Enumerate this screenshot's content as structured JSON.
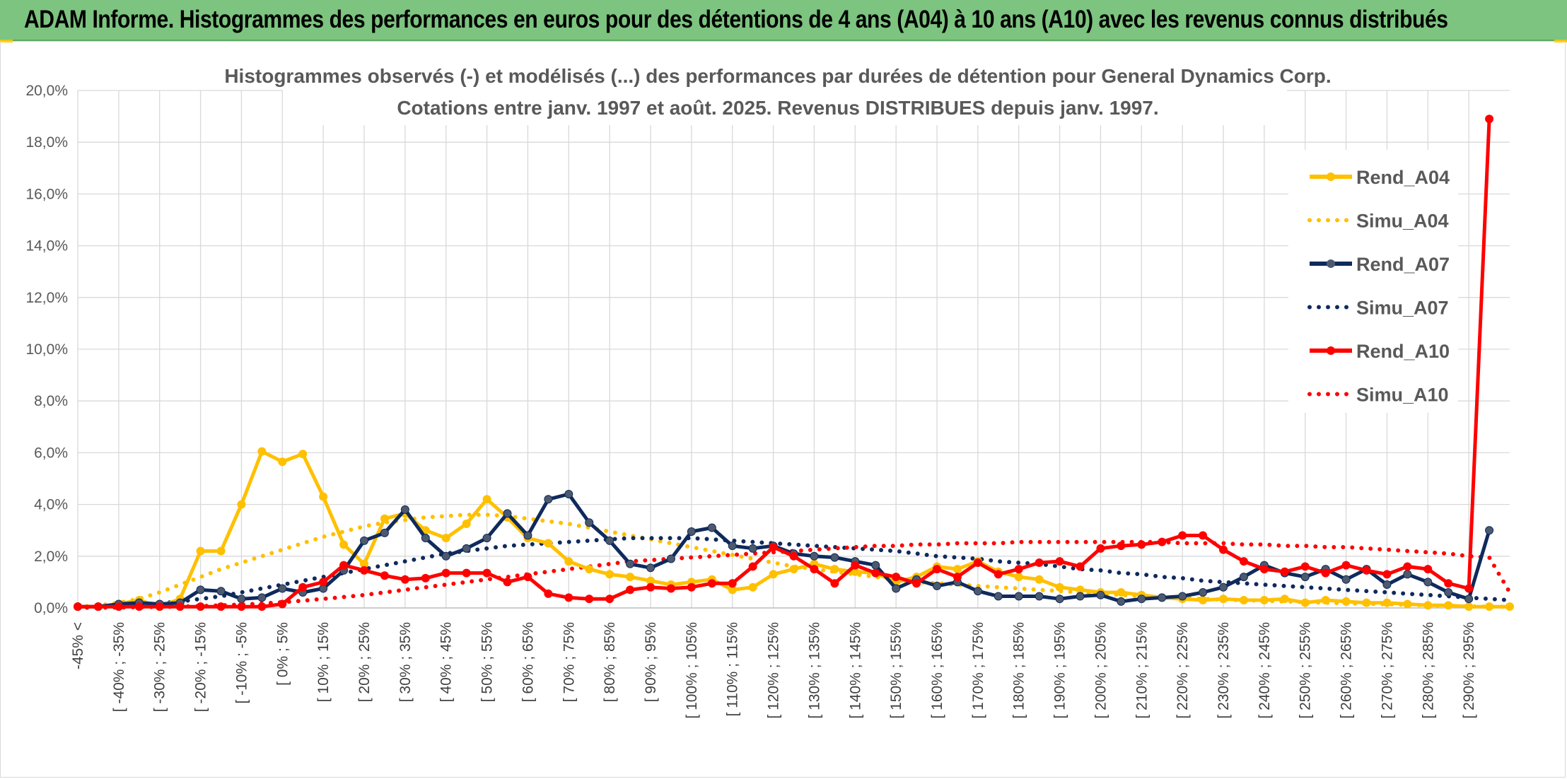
{
  "header": {
    "title": "ADAM Informe. Histogrammes des performances en euros pour des détentions de 4 ans (A04) à 10 ans (A10) avec les revenus connus distribués"
  },
  "colors": {
    "banner": "#7cc47f",
    "A04": "#ffc000",
    "A07": "#0f2a5c",
    "A07_marker": "#4d5a6e",
    "A10": "#ff0000"
  },
  "chart_data": {
    "type": "line",
    "title": "Histogrammes observés (-) et modélisés (...) des performances par durées de détention pour General Dynamics Corp.",
    "subtitle": "Cotations entre janv. 1997 et août. 2025. Revenus DISTRIBUES depuis janv. 1997.",
    "xlabel": "",
    "ylabel": "",
    "ylim": [
      0,
      20
    ],
    "y_ticks": [
      "0,0%",
      "2,0%",
      "4,0%",
      "6,0%",
      "8,0%",
      "10,0%",
      "12,0%",
      "14,0%",
      "16,0%",
      "18,0%",
      "20,0%"
    ],
    "grid": true,
    "legend_position": "right",
    "x_ticks": [
      "-45% <",
      "[ -40% ; -35%",
      "[ -30% ; -25%",
      "[ -20% ; -15%",
      "[ -10% ; -5%",
      "[ 0% ; 5%",
      "[ 10% ; 15%",
      "[ 20% ; 25%",
      "[ 30% ; 35%",
      "[ 40% ; 45%",
      "[ 50% ; 55%",
      "[ 60% ; 65%",
      "[ 70% ; 75%",
      "[ 80% ; 85%",
      "[ 90% ; 95%",
      "[ 100% ; 105%",
      "[ 110% ; 115%",
      "[ 120% ; 125%",
      "[ 130% ; 135%",
      "[ 140% ; 145%",
      "[ 150% ; 155%",
      "[ 160% ; 165%",
      "[ 170% ; 175%",
      "[ 180% ; 185%",
      "[ 190% ; 195%",
      "[ 200% ; 205%",
      "[ 210% ; 215%",
      "[ 220% ; 225%",
      "[ 230% ; 235%",
      "[ 240% ; 245%",
      "[ 250% ; 255%",
      "[ 260% ; 265%",
      "[ 270% ; 275%",
      "[ 280% ; 285%",
      "[ 290% ; 295%"
    ],
    "series": [
      {
        "name": "Rend_A04",
        "style": "solid",
        "color": "#ffc000",
        "values": [
          0.05,
          0.05,
          0.15,
          0.3,
          0.05,
          0.35,
          2.2,
          2.2,
          4.0,
          6.05,
          5.65,
          5.95,
          4.3,
          2.45,
          1.7,
          3.45,
          3.65,
          3.0,
          2.7,
          3.25,
          4.2,
          3.5,
          2.7,
          2.5,
          1.8,
          1.5,
          1.3,
          1.2,
          1.05,
          0.9,
          1.0,
          1.1,
          0.7,
          0.8,
          1.3,
          1.5,
          1.7,
          1.5,
          1.4,
          1.35,
          1.0,
          1.2,
          1.6,
          1.5,
          1.8,
          1.4,
          1.2,
          1.1,
          0.8,
          0.7,
          0.6,
          0.6,
          0.5,
          0.4,
          0.35,
          0.3,
          0.35,
          0.3,
          0.3,
          0.35,
          0.2,
          0.3,
          0.25,
          0.2,
          0.2,
          0.15,
          0.1,
          0.1,
          0.05,
          0.05,
          0.05
        ]
      },
      {
        "name": "Simu_A04",
        "style": "dotted",
        "color": "#ffc000",
        "values": [
          0.05,
          0.1,
          0.2,
          0.35,
          0.6,
          0.9,
          1.2,
          1.5,
          1.75,
          2.0,
          2.25,
          2.5,
          2.75,
          2.95,
          3.15,
          3.3,
          3.4,
          3.5,
          3.55,
          3.6,
          3.6,
          3.55,
          3.45,
          3.35,
          3.25,
          3.1,
          2.95,
          2.8,
          2.65,
          2.5,
          2.35,
          2.2,
          2.05,
          1.9,
          1.75,
          1.6,
          1.5,
          1.4,
          1.3,
          1.2,
          1.1,
          1.0,
          0.95,
          0.9,
          0.85,
          0.8,
          0.75,
          0.7,
          0.65,
          0.6,
          0.55,
          0.5,
          0.45,
          0.4,
          0.38,
          0.35,
          0.32,
          0.3,
          0.27,
          0.25,
          0.22,
          0.2,
          0.18,
          0.16,
          0.14,
          0.12,
          0.1,
          0.08,
          0.06,
          0.05,
          0.05
        ]
      },
      {
        "name": "Rend_A07",
        "style": "solid",
        "color": "#0f2a5c",
        "values": [
          0.05,
          0.05,
          0.15,
          0.2,
          0.15,
          0.2,
          0.7,
          0.65,
          0.35,
          0.4,
          0.75,
          0.6,
          0.75,
          1.45,
          2.6,
          2.9,
          3.8,
          2.7,
          2.0,
          2.3,
          2.7,
          3.65,
          2.8,
          4.2,
          4.4,
          3.3,
          2.6,
          1.7,
          1.55,
          1.9,
          2.95,
          3.1,
          2.4,
          2.3,
          2.4,
          2.1,
          2.0,
          1.95,
          1.8,
          1.65,
          0.75,
          1.1,
          0.85,
          1.0,
          0.65,
          0.45,
          0.45,
          0.45,
          0.35,
          0.45,
          0.5,
          0.25,
          0.35,
          0.4,
          0.45,
          0.6,
          0.8,
          1.2,
          1.65,
          1.35,
          1.2,
          1.5,
          1.1,
          1.5,
          0.9,
          1.3,
          1.0,
          0.6,
          0.35,
          3.0
        ]
      },
      {
        "name": "Simu_A07",
        "style": "dotted",
        "color": "#0f2a5c",
        "values": [
          0.02,
          0.05,
          0.08,
          0.12,
          0.18,
          0.25,
          0.35,
          0.45,
          0.6,
          0.75,
          0.9,
          1.05,
          1.2,
          1.35,
          1.5,
          1.65,
          1.8,
          1.95,
          2.1,
          2.2,
          2.3,
          2.4,
          2.45,
          2.5,
          2.55,
          2.6,
          2.65,
          2.7,
          2.7,
          2.7,
          2.7,
          2.65,
          2.6,
          2.55,
          2.5,
          2.45,
          2.4,
          2.35,
          2.3,
          2.25,
          2.2,
          2.1,
          2.0,
          1.95,
          1.9,
          1.8,
          1.75,
          1.7,
          1.6,
          1.5,
          1.45,
          1.35,
          1.3,
          1.2,
          1.15,
          1.05,
          1.0,
          0.95,
          0.9,
          0.85,
          0.8,
          0.75,
          0.7,
          0.65,
          0.6,
          0.55,
          0.5,
          0.45,
          0.4,
          0.35,
          0.3
        ]
      },
      {
        "name": "Rend_A10",
        "style": "solid",
        "color": "#ff0000",
        "values": [
          0.05,
          0.05,
          0.05,
          0.05,
          0.05,
          0.05,
          0.05,
          0.05,
          0.05,
          0.05,
          0.15,
          0.8,
          1.0,
          1.65,
          1.45,
          1.25,
          1.1,
          1.15,
          1.35,
          1.35,
          1.35,
          1.0,
          1.2,
          0.55,
          0.4,
          0.35,
          0.35,
          0.7,
          0.8,
          0.75,
          0.8,
          0.95,
          0.95,
          1.6,
          2.35,
          2.0,
          1.5,
          0.95,
          1.65,
          1.35,
          1.2,
          0.95,
          1.5,
          1.2,
          1.75,
          1.3,
          1.5,
          1.75,
          1.8,
          1.6,
          2.3,
          2.4,
          2.45,
          2.55,
          2.8,
          2.8,
          2.25,
          1.8,
          1.5,
          1.4,
          1.6,
          1.35,
          1.65,
          1.45,
          1.3,
          1.6,
          1.5,
          0.95,
          0.75,
          18.9
        ]
      },
      {
        "name": "Simu_A10",
        "style": "dotted",
        "color": "#ff0000",
        "values": [
          0.01,
          0.01,
          0.02,
          0.03,
          0.04,
          0.05,
          0.07,
          0.1,
          0.13,
          0.17,
          0.22,
          0.28,
          0.35,
          0.42,
          0.5,
          0.6,
          0.7,
          0.8,
          0.9,
          1.0,
          1.1,
          1.2,
          1.3,
          1.4,
          1.5,
          1.6,
          1.7,
          1.8,
          1.85,
          1.9,
          1.95,
          2.0,
          2.05,
          2.1,
          2.15,
          2.2,
          2.25,
          2.3,
          2.35,
          2.4,
          2.4,
          2.45,
          2.45,
          2.5,
          2.5,
          2.5,
          2.55,
          2.55,
          2.55,
          2.55,
          2.55,
          2.55,
          2.55,
          2.55,
          2.5,
          2.5,
          2.5,
          2.45,
          2.45,
          2.4,
          2.4,
          2.35,
          2.35,
          2.3,
          2.25,
          2.2,
          2.15,
          2.1,
          2.0,
          1.95,
          0.6
        ]
      }
    ]
  }
}
